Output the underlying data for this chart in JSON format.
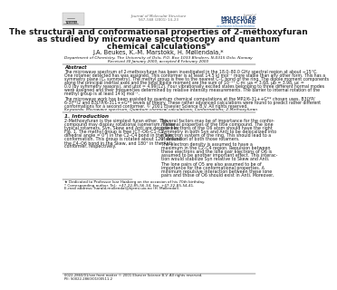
{
  "title_line1": "The structural and conformational properties of 2-methoxyfuran",
  "title_line2": "as studied by microwave spectroscopy and quantum",
  "title_line3": "chemical calculations",
  "title_sup": "*",
  "authors": "J.A. Beukes, K.-M. Marstokk, H. Møllendal",
  "authors_sup": "a,*",
  "affiliation": "Department of Chemistry, The University of Oslo, P.O. Box 1033 Blindern, N-0315 Oslo, Norway",
  "received": "Received 30 January 2000; accepted 4 February 2000",
  "journal_name": "Journal of Molecular Structure",
  "journal_volume": "567–568 (2001) 14–23",
  "journal_url": "www.elsevier.nl/locate/molstruc",
  "abstract_title": "Abstract",
  "abstract_lines": [
    "The microwave spectrum of 2-methoxyfuran has been investigated in the 18.0–80.0 GHz spectral region at about −15°C.",
    "One rotamer detected has was assigned. This conformer is at least 14.5 kJ mol⁻¹ more stable than any other form. This has a",
    "symmetry plane (Cₛ symmetry). The methyl group is free to the nearest C–C bond of the ring. The dipole moment components",
    "along the principal inertial axes and the total dipole moment are the sum of 10⁻³° C·m: μa = 3.68, μb = 3.98, μc =",
    "0.0 (by symmetry reasons), and μtot = 4.99(12). Four vibrationally excited states belonging to three different normal modes",
    "were assigned and their frequencies determined by relative intensity measurements. The barrier to internal rotation of the",
    "methyl group is at least 14 kJ mol⁻¹.",
    "",
    "The microwave work has been assisted by quantum chemical computations at the MP2/6-31++G** chosen uses, B3LYP/",
    "6-3I**/2 and B3LYP/6-311++G** levels of theory. These rather advanced calculations were found to predict rather different",
    "conformations for a second conformer. © 2001 Elsevier Science B.V. All rights reserved."
  ],
  "keywords": "Keywords: Microwave spectrum; Quantum chemical calculations; Conformations; 2-Methoxyfuran",
  "section1_title": "1. Introduction",
  "col1_lines": [
    "2-Methoxyfuran is the simplest furan ether. This",
    "compound may display rotational isomerism. Three",
    "typical rotamers, Syn, Skew and Anti are depicted in",
    "Fig. 1. The methyl group is free (C7–O6–C1–C2",
    "dihedral angle = 0°) in the C2–C4 bond in the Syn",
    "conformation. This group is rotated about 120° around",
    "the C4–O6 bond in the Skew, and 180° in the Anti",
    "conformer, respectively."
  ],
  "col2_lines": [
    "Several factors may be of importance for the confor-",
    "mational properties of the title compound. The lone",
    "pair electrons of the O6 atom should have the right",
    "symmetry in both Syn and Anti to be delocalized into",
    "π electron system of the ring. This should lead to a",
    "stabilization of both those rotamers.",
    "",
    "The electron density is assumed to have a",
    "maximum in the C2–C4 region. Repulsion between",
    "these electrons and the lone pair electrons of O6 is",
    "assumed to be another important effect. This interac-",
    "tion would stabilize Syn relative to Skew and Anti.",
    "",
    "The lone pairs of O5 are also assumed to be of",
    "importance for the conformational properties. A",
    "minimum repulsive interaction between these lone",
    "pairs and those of O6 should exist in Anti. Moreover,"
  ],
  "footnote1": "★ Dedicated to Professor Ivar Haaberg on the occasion of his 70th birthday.",
  "footnote2": "* Corresponding author. Tel.: +47-22-85-56-34; fax: +47-22-85-54-41.",
  "footnote_email": "E-mail address: harald.mollendal@kjemi.uio.no (H. Møllendal).",
  "footer1": "0022-2860/01/see front matter © 2001 Elsevier Science B.V. All rights reserved.",
  "footer2": "PII: S0022-2860(01)00511-2",
  "bg_color": "#ffffff",
  "text_color": "#1a1a1a",
  "gray_color": "#666666",
  "blue_color": "#1a3a6b",
  "line_color": "#000000"
}
